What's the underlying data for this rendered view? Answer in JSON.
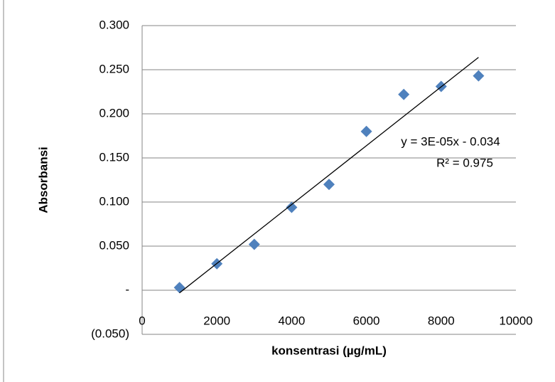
{
  "chart_data": {
    "type": "scatter",
    "x_label": "konsentrasi (µg/mL)",
    "y_label": "Absorbansi",
    "series": [
      {
        "name": "Absorbansi",
        "color": "#4f81bd",
        "x": [
          1000,
          2000,
          3000,
          4000,
          5000,
          6000,
          7000,
          8000,
          9000
        ],
        "values": [
          0.003,
          0.03,
          0.052,
          0.094,
          0.12,
          0.18,
          0.222,
          0.231,
          0.243
        ]
      }
    ],
    "trendline": {
      "x": [
        1000,
        9000
      ],
      "values": [
        -0.003,
        0.264
      ],
      "color": "#000000"
    },
    "annotations": [
      "y = 3E-05x - 0.034",
      "R² = 0.975"
    ],
    "xlim": [
      0,
      10000
    ],
    "xticks": [
      0,
      2000,
      4000,
      6000,
      8000,
      10000
    ],
    "ylim": [
      -0.05,
      0.3
    ],
    "yticks": [
      {
        "value": -0.05,
        "label": "(0.050)"
      },
      {
        "value": 0,
        "label": "-"
      },
      {
        "value": 0.05,
        "label": "0.050"
      },
      {
        "value": 0.1,
        "label": "0.100"
      },
      {
        "value": 0.15,
        "label": "0.150"
      },
      {
        "value": 0.2,
        "label": "0.200"
      },
      {
        "value": 0.25,
        "label": "0.250"
      },
      {
        "value": 0.3,
        "label": "0.300"
      }
    ],
    "grid": true
  }
}
